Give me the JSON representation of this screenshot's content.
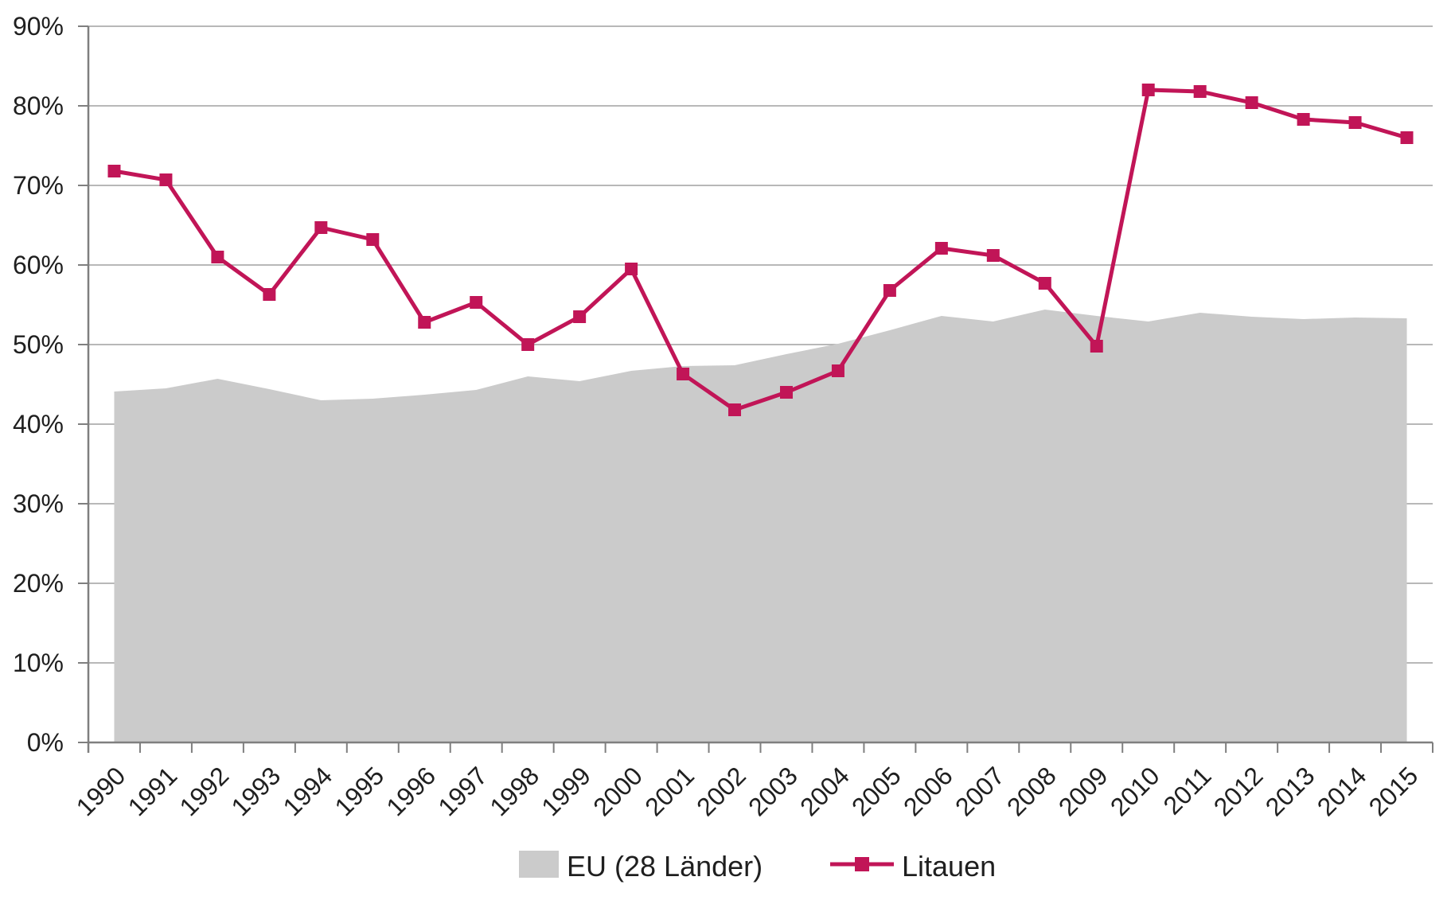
{
  "chart_data": {
    "type": "area+line",
    "title": "",
    "xlabel": "",
    "ylabel": "",
    "ylim": [
      0,
      90
    ],
    "ytick_step": 10,
    "ytick_labels": [
      "0%",
      "10%",
      "20%",
      "30%",
      "40%",
      "50%",
      "60%",
      "70%",
      "80%",
      "90%"
    ],
    "grid": true,
    "legend_position": "bottom",
    "categories": [
      "1990",
      "1991",
      "1992",
      "1993",
      "1994",
      "1995",
      "1996",
      "1997",
      "1998",
      "1999",
      "2000",
      "2001",
      "2002",
      "2003",
      "2004",
      "2005",
      "2006",
      "2007",
      "2008",
      "2009",
      "2010",
      "2011",
      "2012",
      "2013",
      "2014",
      "2015"
    ],
    "series": [
      {
        "name": "EU (28 Länder)",
        "type": "area",
        "color": "#cbcbcb",
        "values": [
          44.1,
          44.5,
          45.7,
          44.4,
          43.0,
          43.2,
          43.7,
          44.3,
          46.0,
          45.4,
          46.7,
          47.3,
          47.4,
          48.8,
          50.1,
          51.8,
          53.6,
          52.9,
          54.4,
          53.6,
          52.9,
          54.0,
          53.5,
          53.2,
          53.4,
          53.3
        ]
      },
      {
        "name": "Litauen",
        "type": "line",
        "marker": "square",
        "color": "#c11557",
        "values": [
          71.8,
          70.7,
          61.0,
          56.3,
          64.7,
          63.2,
          52.8,
          55.3,
          50.0,
          53.5,
          59.5,
          46.3,
          41.8,
          44.0,
          46.7,
          56.8,
          62.1,
          61.2,
          57.7,
          49.8,
          82.0,
          81.8,
          80.4,
          78.3,
          77.9,
          76.0
        ]
      }
    ]
  },
  "legend": {
    "eu_label": "EU (28 Länder)",
    "litauen_label": "Litauen"
  },
  "colors": {
    "eu_area": "#cbcbcb",
    "litauen_line": "#c11557",
    "gridline": "#a0a0a0",
    "axis": "#7f7f7f",
    "text": "#1f1f1f"
  }
}
